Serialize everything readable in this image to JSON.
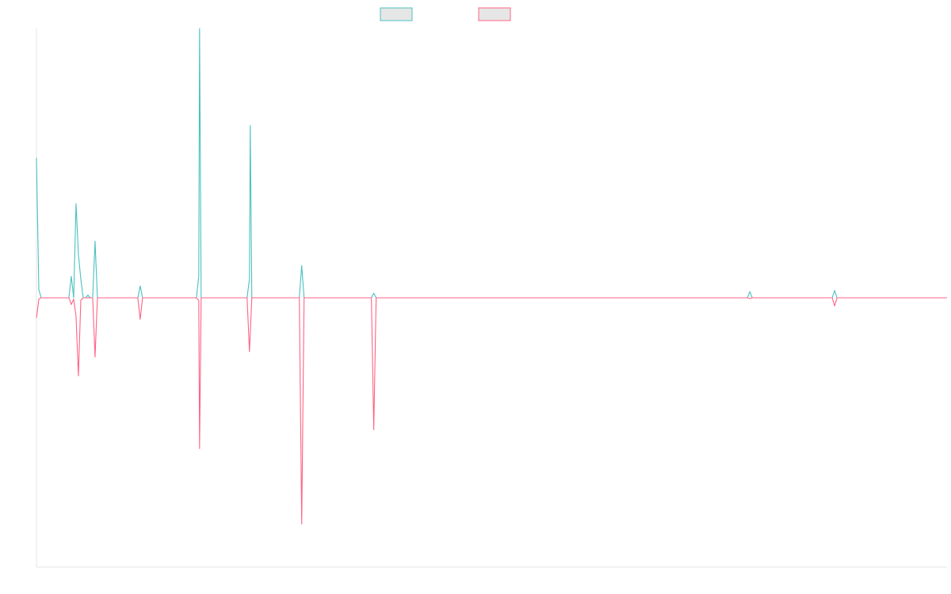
{
  "chart_data": {
    "type": "line",
    "title": "",
    "xlabel": "",
    "ylabel": "",
    "legend_position": "top-center",
    "grid": false,
    "ylim": [
      -1.0,
      1.0
    ],
    "xlim": [
      0,
      115
    ],
    "series": [
      {
        "name": "",
        "color": "#4bc0c0",
        "fill": "#e6e6e6",
        "points": [
          [
            0,
            0.52
          ],
          [
            0.3,
            0.03
          ],
          [
            0.6,
            0
          ],
          [
            4.1,
            0
          ],
          [
            4.4,
            0.08
          ],
          [
            4.7,
            0
          ],
          [
            5.0,
            0.35
          ],
          [
            5.3,
            0.16
          ],
          [
            5.6,
            0.07
          ],
          [
            5.9,
            0
          ],
          [
            6.2,
            0
          ],
          [
            6.5,
            0.01
          ],
          [
            6.8,
            0
          ],
          [
            7.1,
            0
          ],
          [
            7.4,
            0.21
          ],
          [
            7.7,
            0
          ],
          [
            12.8,
            0
          ],
          [
            13.1,
            0.044
          ],
          [
            13.4,
            0
          ],
          [
            20.2,
            0
          ],
          [
            20.5,
            0.08
          ],
          [
            20.6,
            1.0
          ],
          [
            20.8,
            0
          ],
          [
            26.6,
            0
          ],
          [
            26.9,
            0.07
          ],
          [
            27.0,
            0.64
          ],
          [
            27.2,
            0
          ],
          [
            33.2,
            0
          ],
          [
            33.5,
            0.12
          ],
          [
            33.8,
            0
          ],
          [
            42.3,
            0
          ],
          [
            42.6,
            0.017
          ],
          [
            42.9,
            0
          ],
          [
            89.8,
            0
          ],
          [
            90.1,
            0.023
          ],
          [
            90.4,
            0
          ],
          [
            100.5,
            0
          ],
          [
            100.8,
            0.027
          ],
          [
            101.1,
            0
          ],
          [
            115,
            0
          ]
        ]
      },
      {
        "name": "",
        "color": "#ff6384",
        "fill": "#e6e6e6",
        "points": [
          [
            0,
            -0.075
          ],
          [
            0.3,
            -0.005
          ],
          [
            0.6,
            0
          ],
          [
            4.1,
            0
          ],
          [
            4.4,
            -0.025
          ],
          [
            4.7,
            -0.005
          ],
          [
            5.0,
            -0.07
          ],
          [
            5.3,
            -0.29
          ],
          [
            5.6,
            -0.01
          ],
          [
            5.9,
            0
          ],
          [
            7.1,
            0
          ],
          [
            7.4,
            -0.22
          ],
          [
            7.7,
            0
          ],
          [
            12.8,
            0
          ],
          [
            13.1,
            -0.08
          ],
          [
            13.4,
            0
          ],
          [
            20.2,
            0
          ],
          [
            20.5,
            -0.01
          ],
          [
            20.6,
            -0.56
          ],
          [
            20.8,
            0
          ],
          [
            26.6,
            0
          ],
          [
            26.9,
            -0.2
          ],
          [
            27.2,
            0
          ],
          [
            33.2,
            0
          ],
          [
            33.5,
            -0.84
          ],
          [
            33.8,
            0
          ],
          [
            42.3,
            0
          ],
          [
            42.6,
            -0.49
          ],
          [
            42.9,
            0
          ],
          [
            89.8,
            0
          ],
          [
            90.1,
            -0.003
          ],
          [
            90.4,
            0
          ],
          [
            100.5,
            0
          ],
          [
            100.8,
            -0.03
          ],
          [
            101.1,
            0
          ],
          [
            115,
            0
          ]
        ]
      }
    ]
  }
}
